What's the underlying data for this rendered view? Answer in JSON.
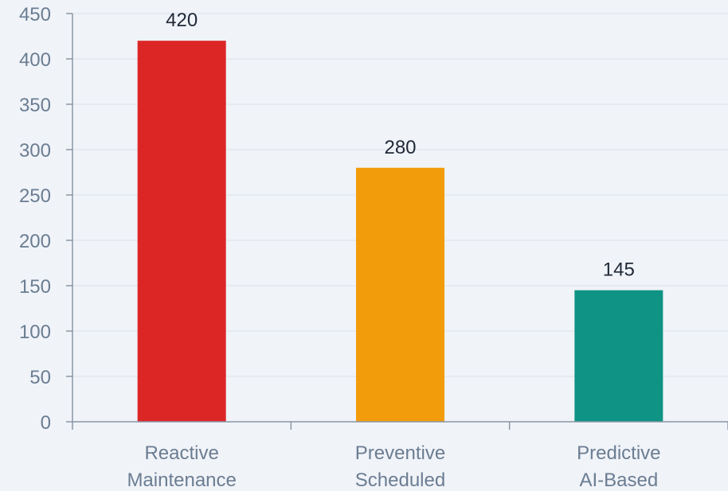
{
  "chart_data": {
    "type": "bar",
    "title": "",
    "xlabel": "",
    "ylabel": "",
    "categories": [
      [
        "Reactive",
        "Maintenance"
      ],
      [
        "Preventive",
        "Scheduled"
      ],
      [
        "Predictive",
        "AI-Based"
      ]
    ],
    "values": [
      420,
      280,
      145
    ],
    "data_labels": [
      "420",
      "280",
      "145"
    ],
    "colors": [
      "#dc2626",
      "#f39c0b",
      "#0e9384"
    ],
    "ylim": [
      0,
      450
    ],
    "yticks": [
      0,
      50,
      100,
      150,
      200,
      250,
      300,
      350,
      400,
      450
    ],
    "grid": true,
    "legend": "none"
  }
}
